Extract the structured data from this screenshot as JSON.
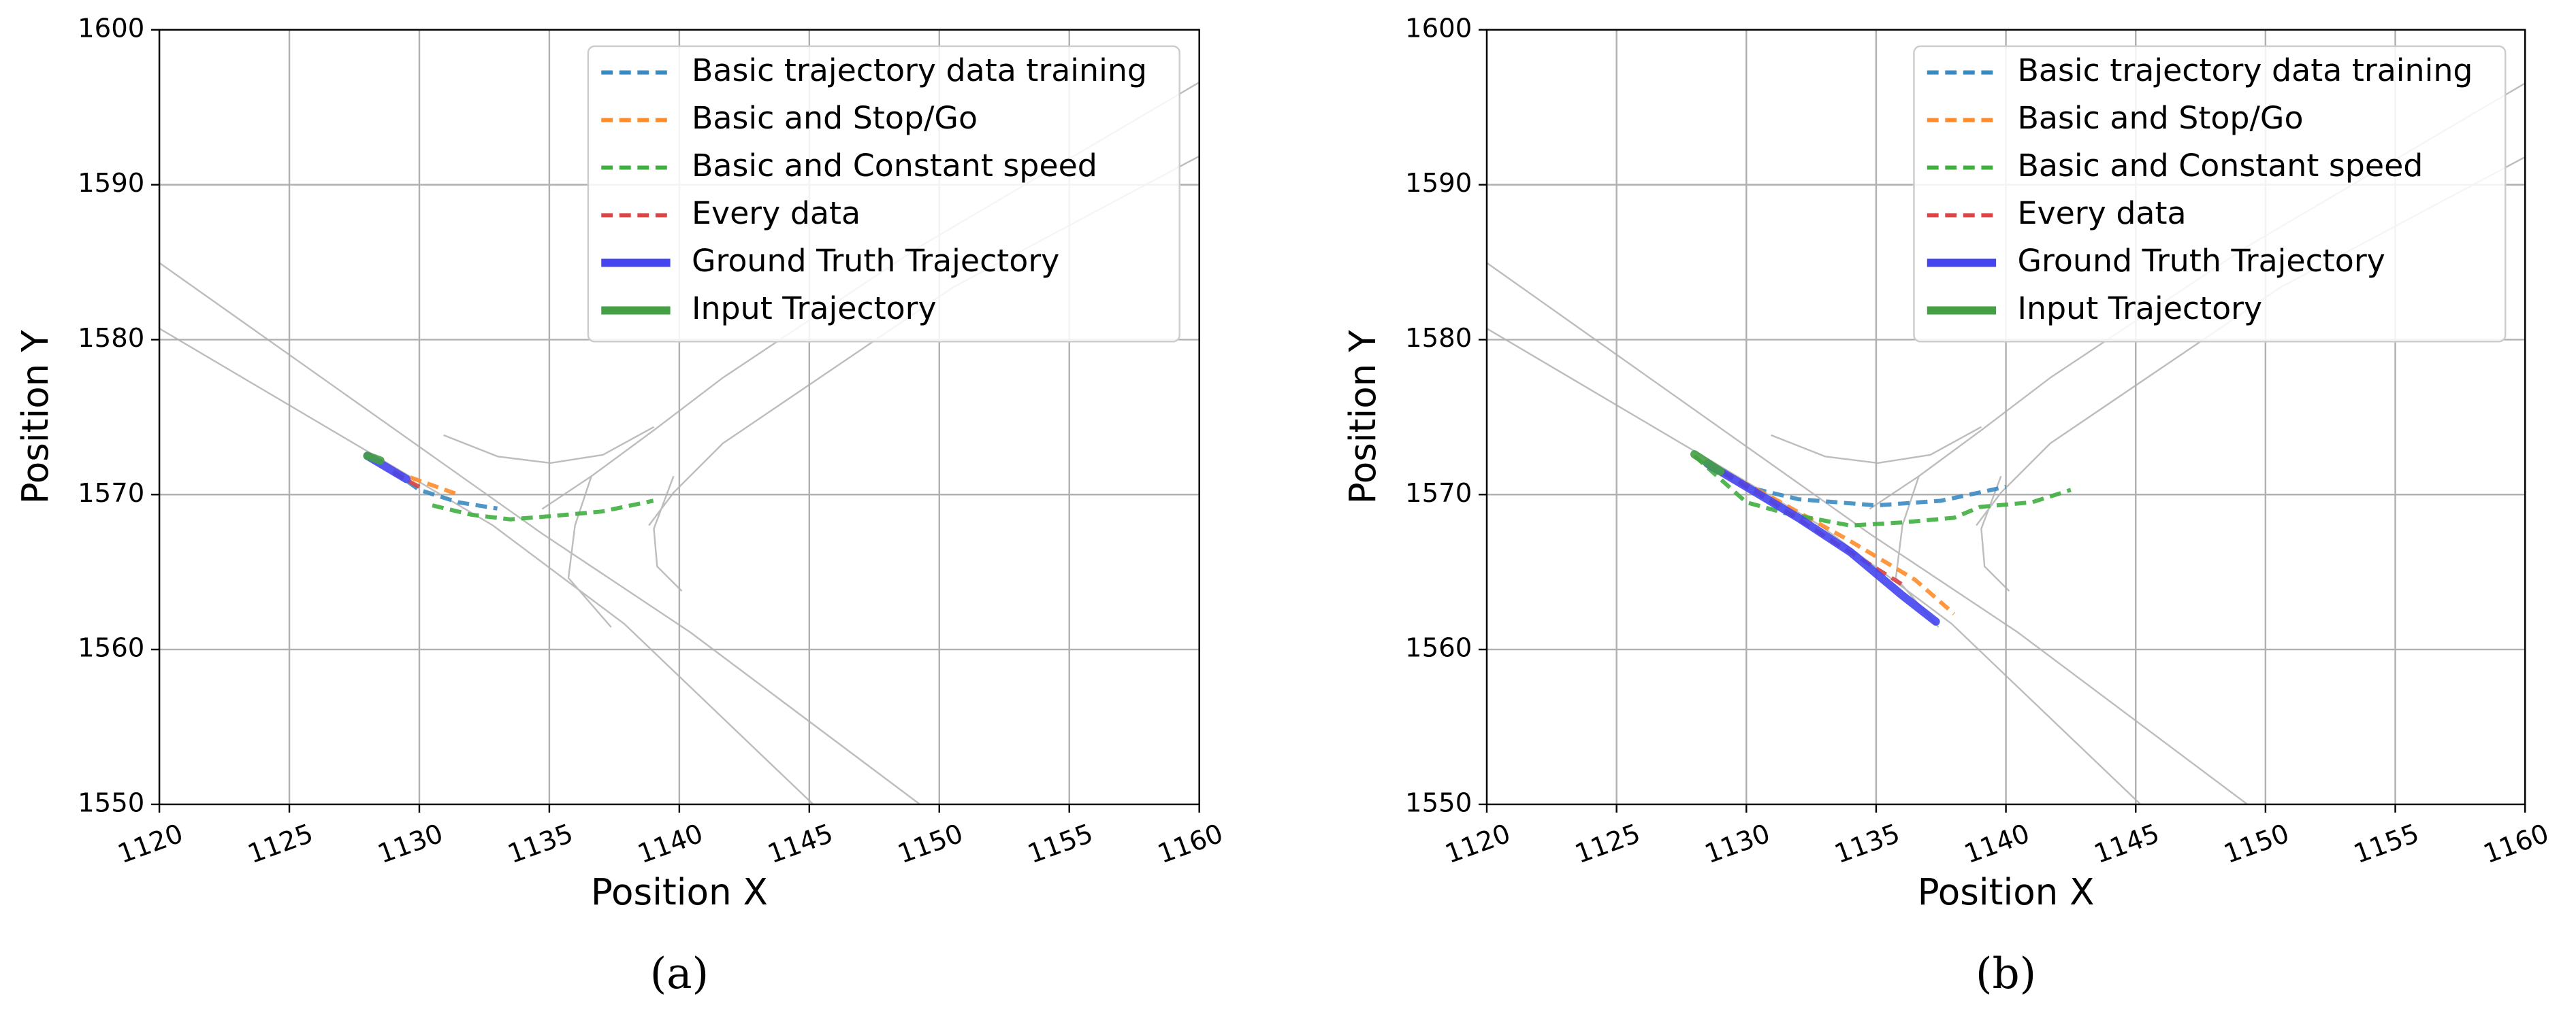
{
  "chart_data": [
    {
      "type": "line",
      "caption": "(a)",
      "xlabel": "Position X",
      "ylabel": "Position Y",
      "xlim": [
        1120,
        1160
      ],
      "xticks": [
        1120,
        1125,
        1130,
        1135,
        1140,
        1145,
        1150,
        1155,
        1160
      ],
      "ylim": [
        1550,
        1600
      ],
      "yticks": [
        1550,
        1560,
        1570,
        1580,
        1590,
        1600
      ],
      "grid": true,
      "legend": "upper right",
      "series": [
        {
          "name": "Basic trajectory data training",
          "color": "#3b8bc2",
          "style": "dashed",
          "width": 2.5,
          "x": [
            1129,
            1130,
            1131.5,
            1133
          ],
          "values": [
            1571.5,
            1570.3,
            1569.5,
            1569.1
          ]
        },
        {
          "name": "Basic and Stop/Go",
          "color": "#ff8c2a",
          "style": "dashed",
          "width": 2.5,
          "x": [
            1129,
            1130.5,
            1131.5
          ],
          "values": [
            1571.5,
            1570.6,
            1570
          ]
        },
        {
          "name": "Basic and Constant speed",
          "color": "#3fae3f",
          "style": "dashed",
          "width": 2.5,
          "x": [
            1130.5,
            1132,
            1133.5,
            1135,
            1137,
            1139
          ],
          "values": [
            1569.3,
            1568.7,
            1568.4,
            1568.6,
            1568.9,
            1569.6
          ]
        },
        {
          "name": "Every data",
          "color": "#d94545",
          "style": "dashed",
          "width": 2.5,
          "x": [
            1129,
            1130
          ],
          "values": [
            1571.4,
            1570.5
          ]
        },
        {
          "name": "Ground Truth Trajectory",
          "color": "#4444f0",
          "style": "solid",
          "width": 5,
          "x": [
            1128,
            1129.5
          ],
          "values": [
            1572.5,
            1571
          ]
        },
        {
          "name": "Input Trajectory",
          "color": "#44a044",
          "style": "solid",
          "width": 5,
          "x": [
            1128,
            1128.5
          ],
          "values": [
            1572.5,
            1572.2
          ]
        }
      ]
    },
    {
      "type": "line",
      "caption": "(b)",
      "xlabel": "Position X",
      "ylabel": "Position Y",
      "xlim": [
        1120,
        1160
      ],
      "xticks": [
        1120,
        1125,
        1130,
        1135,
        1140,
        1145,
        1150,
        1155,
        1160
      ],
      "ylim": [
        1550,
        1600
      ],
      "yticks": [
        1550,
        1560,
        1570,
        1580,
        1590,
        1600
      ],
      "grid": true,
      "legend": "upper right",
      "series": [
        {
          "name": "Basic trajectory data training",
          "color": "#3b8bc2",
          "style": "dashed",
          "width": 2.5,
          "x": [
            1128.5,
            1130,
            1132,
            1135,
            1137.5,
            1140
          ],
          "values": [
            1572,
            1570.5,
            1569.7,
            1569.3,
            1569.6,
            1570.5
          ]
        },
        {
          "name": "Basic and Stop/Go",
          "color": "#ff8c2a",
          "style": "dashed",
          "width": 2.5,
          "x": [
            1128.5,
            1131,
            1134,
            1136.5,
            1138
          ],
          "values": [
            1572,
            1569.8,
            1567,
            1564.5,
            1562.3
          ]
        },
        {
          "name": "Basic and Constant speed",
          "color": "#3fae3f",
          "style": "dashed",
          "width": 2.5,
          "x": [
            1128,
            1129,
            1130,
            1131.5,
            1134,
            1136,
            1138,
            1139,
            1141,
            1142.5
          ],
          "values": [
            1572.5,
            1571,
            1569.5,
            1568.8,
            1568,
            1568.2,
            1568.5,
            1569.2,
            1569.5,
            1570.3
          ]
        },
        {
          "name": "Every data",
          "color": "#d94545",
          "style": "dashed",
          "width": 2.5,
          "x": [
            1128.5,
            1131,
            1133.5,
            1136
          ],
          "values": [
            1572,
            1569.5,
            1566.8,
            1564.2
          ]
        },
        {
          "name": "Ground Truth Trajectory",
          "color": "#4444f0",
          "style": "solid",
          "width": 5,
          "x": [
            1128.5,
            1130,
            1132,
            1134,
            1136,
            1137.3
          ],
          "values": [
            1572,
            1570.5,
            1568.5,
            1566.3,
            1563.5,
            1561.8
          ]
        },
        {
          "name": "Input Trajectory",
          "color": "#44a044",
          "style": "solid",
          "width": 5,
          "x": [
            1128,
            1129
          ],
          "values": [
            1572.6,
            1571.5
          ]
        }
      ]
    }
  ]
}
